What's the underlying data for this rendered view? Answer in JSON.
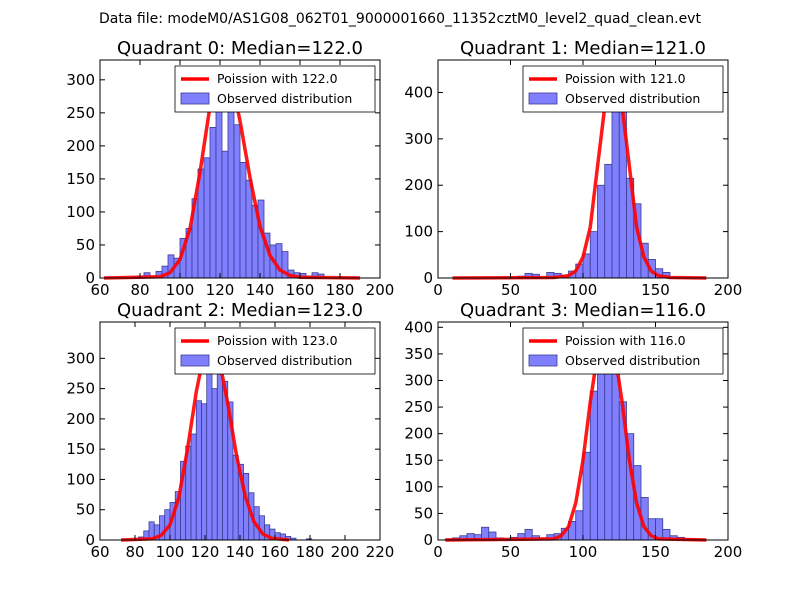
{
  "suptitle": "Data file: modeM0/AS1G08_062T01_9000001660_11352cztM0_level2_quad_clean.evt",
  "colors": {
    "bar_fill": "#8080ff",
    "bar_edge": "#3a3a8f",
    "poisson_line": "#ff0000"
  },
  "chart_data": [
    {
      "type": "bar",
      "title": "Quadrant 0: Median=122.0",
      "median": 122,
      "xlim": [
        60,
        200
      ],
      "ylim": [
        0,
        330
      ],
      "xticks": [
        60,
        80,
        100,
        120,
        140,
        160,
        180,
        200
      ],
      "yticks": [
        0,
        50,
        100,
        150,
        200,
        250,
        300
      ],
      "xlabel": "",
      "ylabel": "",
      "legend": [
        "Poission with 122.0",
        "Observed distribution"
      ],
      "legend_position": "top-right",
      "bins": [
        76,
        79,
        82,
        85,
        88,
        91,
        94,
        97,
        100,
        103,
        106,
        109,
        112,
        115,
        118,
        121,
        124,
        127,
        130,
        133,
        136,
        139,
        142,
        145,
        148,
        151,
        154,
        157,
        160,
        163,
        166,
        169
      ],
      "bin_width": 3,
      "counts": [
        2,
        3,
        8,
        3,
        10,
        18,
        35,
        30,
        60,
        75,
        120,
        165,
        182,
        228,
        290,
        192,
        260,
        232,
        175,
        148,
        110,
        118,
        68,
        50,
        52,
        40,
        12,
        8,
        7,
        3,
        8,
        6
      ],
      "poisson": [
        [
          62,
          0
        ],
        [
          90,
          2
        ],
        [
          95,
          8
        ],
        [
          100,
          28
        ],
        [
          105,
          75
        ],
        [
          110,
          160
        ],
        [
          115,
          260
        ],
        [
          120,
          318
        ],
        [
          125,
          312
        ],
        [
          130,
          238
        ],
        [
          135,
          152
        ],
        [
          140,
          78
        ],
        [
          145,
          34
        ],
        [
          150,
          12
        ],
        [
          155,
          4
        ],
        [
          160,
          1
        ],
        [
          190,
          0
        ]
      ]
    },
    {
      "type": "bar",
      "title": "Quadrant 1: Median=121.0",
      "median": 121,
      "xlim": [
        0,
        200
      ],
      "ylim": [
        0,
        470
      ],
      "xticks": [
        0,
        50,
        100,
        150,
        200
      ],
      "yticks": [
        0,
        100,
        200,
        300,
        400
      ],
      "xlabel": "",
      "ylabel": "",
      "legend": [
        "Poission with 121.0",
        "Observed distribution"
      ],
      "legend_position": "top-right",
      "bins": [
        55,
        60,
        65,
        75,
        80,
        85,
        90,
        95,
        100,
        105,
        110,
        115,
        120,
        125,
        130,
        135,
        140,
        145,
        150,
        155
      ],
      "bin_width": 5,
      "counts": [
        4,
        10,
        8,
        12,
        10,
        6,
        15,
        30,
        52,
        100,
        200,
        245,
        430,
        370,
        215,
        160,
        75,
        40,
        20,
        12
      ],
      "poisson": [
        [
          10,
          0
        ],
        [
          80,
          1
        ],
        [
          90,
          5
        ],
        [
          95,
          15
        ],
        [
          100,
          45
        ],
        [
          105,
          110
        ],
        [
          110,
          240
        ],
        [
          115,
          370
        ],
        [
          121,
          450
        ],
        [
          127,
          370
        ],
        [
          132,
          240
        ],
        [
          137,
          110
        ],
        [
          142,
          45
        ],
        [
          147,
          15
        ],
        [
          152,
          5
        ],
        [
          160,
          1
        ],
        [
          185,
          0
        ]
      ]
    },
    {
      "type": "bar",
      "title": "Quadrant 2: Median=123.0",
      "median": 123,
      "xlim": [
        60,
        220
      ],
      "ylim": [
        0,
        360
      ],
      "xticks": [
        60,
        80,
        100,
        120,
        140,
        160,
        180,
        200,
        220
      ],
      "yticks": [
        0,
        50,
        100,
        150,
        200,
        250,
        300
      ],
      "xlabel": "",
      "ylabel": "",
      "legend": [
        "Poission with 123.0",
        "Observed distribution"
      ],
      "legend_position": "top-right",
      "bins": [
        82,
        85,
        88,
        91,
        94,
        97,
        100,
        103,
        106,
        109,
        112,
        115,
        118,
        121,
        124,
        127,
        130,
        133,
        136,
        139,
        142,
        145,
        148,
        151,
        154,
        157,
        160,
        163,
        166,
        169,
        178
      ],
      "bin_width": 3,
      "counts": [
        5,
        15,
        30,
        25,
        40,
        50,
        62,
        80,
        130,
        155,
        175,
        230,
        225,
        330,
        250,
        300,
        262,
        228,
        140,
        125,
        110,
        78,
        55,
        40,
        25,
        18,
        12,
        10,
        6,
        3,
        2
      ],
      "poisson": [
        [
          72,
          0
        ],
        [
          90,
          2
        ],
        [
          95,
          8
        ],
        [
          100,
          25
        ],
        [
          105,
          70
        ],
        [
          110,
          150
        ],
        [
          115,
          245
        ],
        [
          120,
          315
        ],
        [
          123,
          330
        ],
        [
          128,
          300
        ],
        [
          133,
          225
        ],
        [
          138,
          140
        ],
        [
          143,
          72
        ],
        [
          148,
          30
        ],
        [
          153,
          10
        ],
        [
          158,
          3
        ],
        [
          168,
          0
        ]
      ]
    },
    {
      "type": "bar",
      "title": "Quadrant 3: Median=116.0",
      "median": 116,
      "xlim": [
        0,
        200
      ],
      "ylim": [
        0,
        410
      ],
      "xticks": [
        0,
        50,
        100,
        150,
        200
      ],
      "yticks": [
        0,
        50,
        100,
        150,
        200,
        250,
        300,
        350,
        400
      ],
      "xlabel": "",
      "ylabel": "",
      "legend": [
        "Poission with 116.0",
        "Observed distribution"
      ],
      "legend_position": "top-right",
      "bins": [
        5,
        10,
        15,
        20,
        25,
        30,
        35,
        40,
        45,
        50,
        55,
        60,
        65,
        70,
        75,
        80,
        85,
        90,
        95,
        100,
        105,
        110,
        115,
        120,
        125,
        130,
        135,
        140,
        145,
        150,
        155,
        160,
        165,
        170,
        175,
        180
      ],
      "bin_width": 5,
      "counts": [
        2,
        4,
        8,
        12,
        10,
        24,
        15,
        4,
        2,
        5,
        12,
        20,
        8,
        4,
        10,
        12,
        22,
        35,
        55,
        165,
        280,
        375,
        350,
        365,
        260,
        200,
        140,
        80,
        40,
        40,
        20,
        8,
        5,
        2,
        2,
        1
      ],
      "poisson": [
        [
          5,
          0
        ],
        [
          80,
          2
        ],
        [
          85,
          8
        ],
        [
          90,
          25
        ],
        [
          95,
          70
        ],
        [
          100,
          150
        ],
        [
          105,
          260
        ],
        [
          110,
          350
        ],
        [
          116,
          395
        ],
        [
          122,
          350
        ],
        [
          127,
          260
        ],
        [
          132,
          150
        ],
        [
          137,
          70
        ],
        [
          142,
          25
        ],
        [
          147,
          8
        ],
        [
          152,
          2
        ],
        [
          185,
          0
        ]
      ]
    }
  ]
}
